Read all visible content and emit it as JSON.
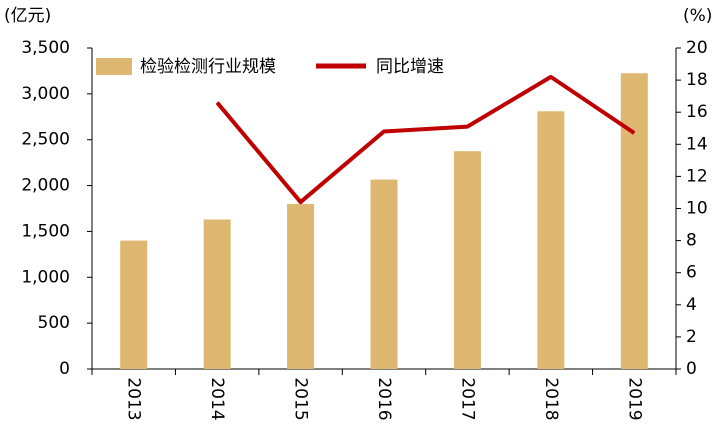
{
  "chart_data": {
    "type": "bar",
    "y_label": "(亿元)",
    "y2_label": "(%)",
    "categories": [
      "2013",
      "2014",
      "2015",
      "2016",
      "2017",
      "2018",
      "2019"
    ],
    "series": [
      {
        "name": "检验检测行业规模",
        "type": "bar",
        "color": "#deb870",
        "values": [
          1400,
          1630,
          1800,
          2065,
          2375,
          2810,
          3225
        ]
      },
      {
        "name": "同比增速",
        "type": "line",
        "axis": "y2",
        "color": "#c00000",
        "values": [
          null,
          16.6,
          10.4,
          14.8,
          15.1,
          18.2,
          14.7
        ]
      }
    ],
    "ylim": [
      0,
      3500
    ],
    "yticks": [
      0,
      500,
      {
        "value": 1000,
        "label": "1,000"
      },
      {
        "value": 1500,
        "label": "1,500"
      },
      {
        "value": 2000,
        "label": "2,000"
      },
      {
        "value": 2500,
        "label": "2,500"
      },
      {
        "value": 3000,
        "label": "3,000"
      },
      {
        "value": 3500,
        "label": "3,500"
      }
    ],
    "y2lim": [
      0,
      20
    ],
    "y2ticks": [
      0,
      2,
      4,
      6,
      8,
      10,
      12,
      14,
      16,
      18,
      20
    ],
    "grid": false,
    "legend": "top"
  }
}
